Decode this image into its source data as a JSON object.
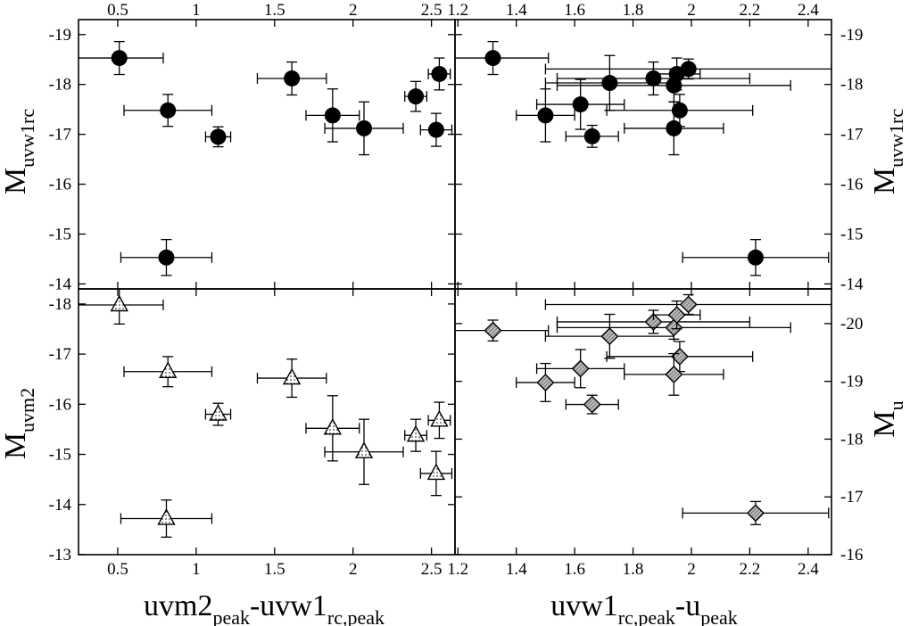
{
  "figure": {
    "x_label_left": {
      "main": "uvm2",
      "sub1": "peak",
      "mid": "-uvw1",
      "sub2": "rc,peak"
    },
    "x_label_right": {
      "main": "uvw1",
      "sub1": "rc,peak",
      "mid": "-u",
      "sub2": "peak"
    },
    "y_label_top_left": {
      "main": "M",
      "sub": "uvw1rc"
    },
    "y_label_top_right": {
      "main": "M",
      "sub": "uvw1rc"
    },
    "y_label_bottom_left": {
      "main": "M",
      "sub": "uvm2"
    },
    "y_label_bottom_right": {
      "main": "M",
      "sub": "u"
    }
  },
  "chart_data": [
    {
      "id": "top-left",
      "type": "scatter",
      "title": "",
      "xlabel": "uvm2_peak-uvw1_rc,peak",
      "ylabel": "M_uvw1rc",
      "xlim": [
        0.25,
        2.65
      ],
      "ylim": [
        -13.9,
        -19.3
      ],
      "xticks": [
        0.5,
        1,
        1.5,
        2,
        2.5
      ],
      "xtick_labels": [
        "0.5",
        "1",
        "1.5",
        "2",
        "2.5"
      ],
      "yticks": [
        -14,
        -15,
        -16,
        -17,
        -18,
        -19
      ],
      "ytick_labels": [
        "-14",
        "-15",
        "-16",
        "-17",
        "-18",
        "-19"
      ],
      "marker": "circle-filled",
      "points": [
        {
          "x": 0.51,
          "xerr": 0.28,
          "y": -18.53,
          "yerr": 0.33
        },
        {
          "x": 0.82,
          "xerr": 0.28,
          "y": -17.48,
          "yerr": 0.32
        },
        {
          "x": 1.14,
          "xerr": 0.08,
          "y": -16.95,
          "yerr": 0.2
        },
        {
          "x": 1.61,
          "xerr": 0.22,
          "y": -18.12,
          "yerr": 0.33
        },
        {
          "x": 1.87,
          "xerr": 0.17,
          "y": -17.38,
          "yerr": 0.53
        },
        {
          "x": 2.07,
          "xerr": 0.25,
          "y": -17.12,
          "yerr": 0.53
        },
        {
          "x": 2.4,
          "xerr": 0.07,
          "y": -17.76,
          "yerr": 0.3
        },
        {
          "x": 2.55,
          "xerr": 0.07,
          "y": -18.21,
          "yerr": 0.32
        },
        {
          "x": 2.53,
          "xerr": 0.1,
          "y": -17.09,
          "yerr": 0.33
        },
        {
          "x": 0.81,
          "xerr": 0.29,
          "y": -14.53,
          "yerr": 0.36
        }
      ]
    },
    {
      "id": "top-right",
      "type": "scatter",
      "title": "",
      "xlabel": "uvw1_rc,peak-u_peak",
      "ylabel": "M_uvw1rc",
      "xlim": [
        1.19,
        2.48
      ],
      "ylim": [
        -13.9,
        -19.3
      ],
      "xticks": [
        1.2,
        1.4,
        1.6,
        1.8,
        2,
        2.2,
        2.4
      ],
      "xtick_labels": [
        "1.2",
        "1.4",
        "1.6",
        "1.8",
        "2",
        "2.2",
        "2.4"
      ],
      "yticks": [
        -14,
        -15,
        -16,
        -17,
        -18,
        -19
      ],
      "ytick_labels": [
        "-14",
        "-15",
        "-16",
        "-17",
        "-18",
        "-19"
      ],
      "marker": "circle-filled",
      "points": [
        {
          "x": 1.32,
          "xerr": 0.19,
          "y": -18.53,
          "yerr": 0.33
        },
        {
          "x": 1.5,
          "xerr": 0.1,
          "y": -17.38,
          "yerr": 0.53
        },
        {
          "x": 1.62,
          "xerr": 0.15,
          "y": -17.6,
          "yerr": 0.5
        },
        {
          "x": 1.66,
          "xerr": 0.09,
          "y": -16.96,
          "yerr": 0.22
        },
        {
          "x": 1.72,
          "xerr": 0.22,
          "y": -18.03,
          "yerr": 0.55
        },
        {
          "x": 1.87,
          "xerr": 0.33,
          "y": -18.12,
          "yerr": 0.33
        },
        {
          "x": 1.94,
          "xerr": 0.4,
          "y": -17.98,
          "yerr": 0.33
        },
        {
          "x": 1.95,
          "xerr": 0.08,
          "y": -18.21,
          "yerr": 0.32
        },
        {
          "x": 1.96,
          "xerr": 0.25,
          "y": -17.48,
          "yerr": 0.32
        },
        {
          "x": 1.94,
          "xerr": 0.17,
          "y": -17.12,
          "yerr": 0.53
        },
        {
          "x": 1.99,
          "xerr": 0.49,
          "y": -18.31,
          "yerr": 0.2
        },
        {
          "x": 2.22,
          "xerr": 0.25,
          "y": -14.53,
          "yerr": 0.36
        }
      ]
    },
    {
      "id": "bottom-left",
      "type": "scatter",
      "title": "",
      "xlabel": "uvm2_peak-uvw1_rc,peak",
      "ylabel": "M_uvm2",
      "xlim": [
        0.25,
        2.65
      ],
      "ylim": [
        -13,
        -18.3
      ],
      "xticks": [
        0.5,
        1,
        1.5,
        2,
        2.5
      ],
      "xtick_labels": [
        "0.5",
        "1",
        "1.5",
        "2",
        "2.5"
      ],
      "yticks": [
        -13,
        -14,
        -15,
        -16,
        -17,
        -18
      ],
      "ytick_labels": [
        "-13",
        "-14",
        "-15",
        "-16",
        "-17",
        "-18"
      ],
      "marker": "triangle-open-dotted",
      "points": [
        {
          "x": 0.51,
          "xerr": 0.28,
          "y": -17.98,
          "yerr": 0.38
        },
        {
          "x": 0.82,
          "xerr": 0.28,
          "y": -16.65,
          "yerr": 0.3
        },
        {
          "x": 1.14,
          "xerr": 0.08,
          "y": -15.8,
          "yerr": 0.22
        },
        {
          "x": 1.61,
          "xerr": 0.22,
          "y": -16.52,
          "yerr": 0.38
        },
        {
          "x": 1.87,
          "xerr": 0.17,
          "y": -15.52,
          "yerr": 0.65
        },
        {
          "x": 2.07,
          "xerr": 0.25,
          "y": -15.05,
          "yerr": 0.65
        },
        {
          "x": 2.4,
          "xerr": 0.07,
          "y": -15.38,
          "yerr": 0.32
        },
        {
          "x": 2.55,
          "xerr": 0.07,
          "y": -15.68,
          "yerr": 0.36
        },
        {
          "x": 2.53,
          "xerr": 0.1,
          "y": -14.62,
          "yerr": 0.44
        },
        {
          "x": 0.81,
          "xerr": 0.29,
          "y": -13.72,
          "yerr": 0.37
        }
      ]
    },
    {
      "id": "bottom-right",
      "type": "scatter",
      "title": "",
      "xlabel": "uvw1_rc,peak-u_peak",
      "ylabel": "M_u",
      "xlim": [
        1.19,
        2.48
      ],
      "ylim": [
        -16,
        -20.6
      ],
      "xticks": [
        1.2,
        1.4,
        1.6,
        1.8,
        2,
        2.2,
        2.4
      ],
      "xtick_labels": [
        "1.2",
        "1.4",
        "1.6",
        "1.8",
        "2",
        "2.2",
        "2.4"
      ],
      "yticks": [
        -16,
        -17,
        -18,
        -19,
        -20
      ],
      "ytick_labels": [
        "-16",
        "-17",
        "-18",
        "-19",
        "-20"
      ],
      "marker": "diamond-hatched",
      "points": [
        {
          "x": 1.32,
          "xerr": 0.19,
          "y": -19.88,
          "yerr": 0.18
        },
        {
          "x": 1.5,
          "xerr": 0.1,
          "y": -18.98,
          "yerr": 0.33
        },
        {
          "x": 1.62,
          "xerr": 0.15,
          "y": -19.22,
          "yerr": 0.33
        },
        {
          "x": 1.66,
          "xerr": 0.09,
          "y": -18.6,
          "yerr": 0.16
        },
        {
          "x": 1.72,
          "xerr": 0.22,
          "y": -19.78,
          "yerr": 0.38
        },
        {
          "x": 1.87,
          "xerr": 0.33,
          "y": -20.03,
          "yerr": 0.2
        },
        {
          "x": 1.94,
          "xerr": 0.4,
          "y": -19.93,
          "yerr": 0.2
        },
        {
          "x": 1.95,
          "xerr": 0.08,
          "y": -20.15,
          "yerr": 0.24
        },
        {
          "x": 1.96,
          "xerr": 0.25,
          "y": -19.43,
          "yerr": 0.26
        },
        {
          "x": 1.94,
          "xerr": 0.17,
          "y": -19.12,
          "yerr": 0.36
        },
        {
          "x": 1.99,
          "xerr": 0.49,
          "y": -20.33,
          "yerr": 0.17
        },
        {
          "x": 2.22,
          "xerr": 0.25,
          "y": -16.72,
          "yerr": 0.2
        }
      ]
    }
  ]
}
